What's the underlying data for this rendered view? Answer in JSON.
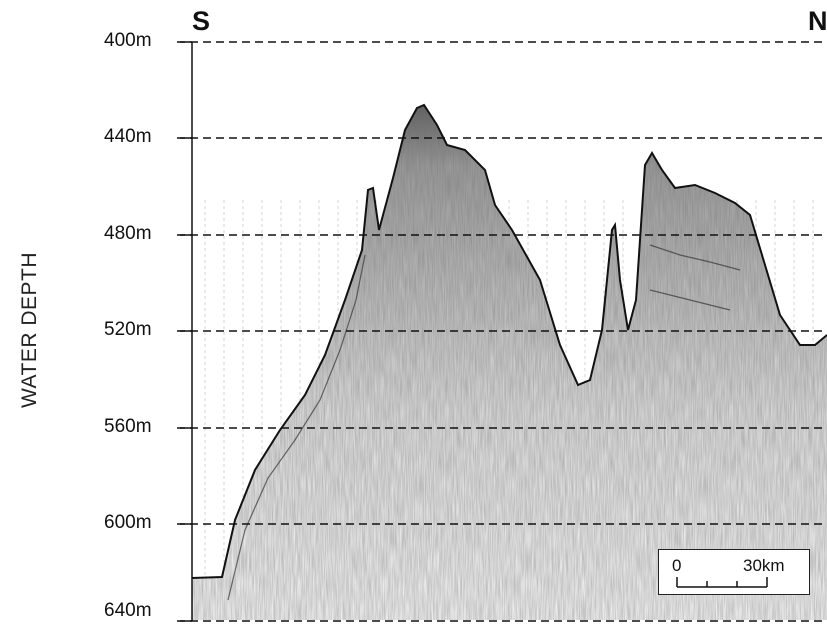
{
  "compass": {
    "left": "S",
    "right": "N"
  },
  "y_axis": {
    "title": "WATER DEPTH",
    "ticks": [
      "400m",
      "440m",
      "480m",
      "520m",
      "560m",
      "600m",
      "640m"
    ]
  },
  "scale_bar": {
    "start_label": "0",
    "end_label": "30km"
  },
  "colors": {
    "ink": "#111111",
    "background": "#ffffff"
  }
}
